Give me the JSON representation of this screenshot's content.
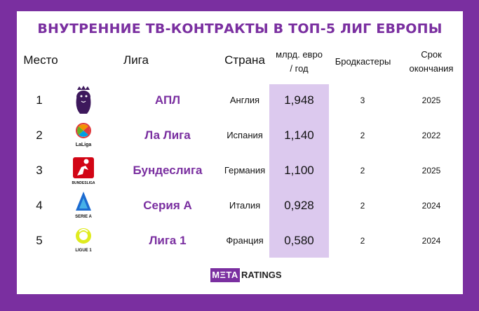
{
  "title": "ВНУТРЕННИЕ ТВ-КОНТРАКТЫ В ТОП-5 ЛИГ ЕВРОПЫ",
  "headers": {
    "rank": "Место",
    "league": "Лига",
    "country": "Страна",
    "value_line1": "млрд. евро",
    "value_line2": "/ год",
    "broadcasters": "Бродкастеры",
    "end_line1": "Срок",
    "end_line2": "окончания"
  },
  "rows": [
    {
      "rank": "1",
      "logo": "premier-league-logo",
      "league": "АПЛ",
      "country": "Англия",
      "value": "1,948",
      "broadcasters": "3",
      "end": "2025"
    },
    {
      "rank": "2",
      "logo": "laliga-logo",
      "logo_caption": "LaLiga",
      "league": "Ла Лига",
      "country": "Испания",
      "value": "1,140",
      "broadcasters": "2",
      "end": "2022"
    },
    {
      "rank": "3",
      "logo": "bundesliga-logo",
      "logo_caption": "BUNDESLIGA",
      "league": "Бундеслига",
      "country": "Германия",
      "value": "1,100",
      "broadcasters": "2",
      "end": "2025"
    },
    {
      "rank": "4",
      "logo": "serie-a-logo",
      "logo_caption": "SERIE A",
      "league": "Серия А",
      "country": "Италия",
      "value": "0,928",
      "broadcasters": "2",
      "end": "2024"
    },
    {
      "rank": "5",
      "logo": "ligue-1-logo",
      "logo_caption": "LIGUE 1",
      "league": "Лига 1",
      "country": "Франция",
      "value": "0,580",
      "broadcasters": "2",
      "end": "2024"
    }
  ],
  "brand": {
    "part1": "MΞTA",
    "part2": "RATINGS"
  },
  "colors": {
    "accent": "#7a2fa0",
    "highlight": "#dcc9ee"
  }
}
